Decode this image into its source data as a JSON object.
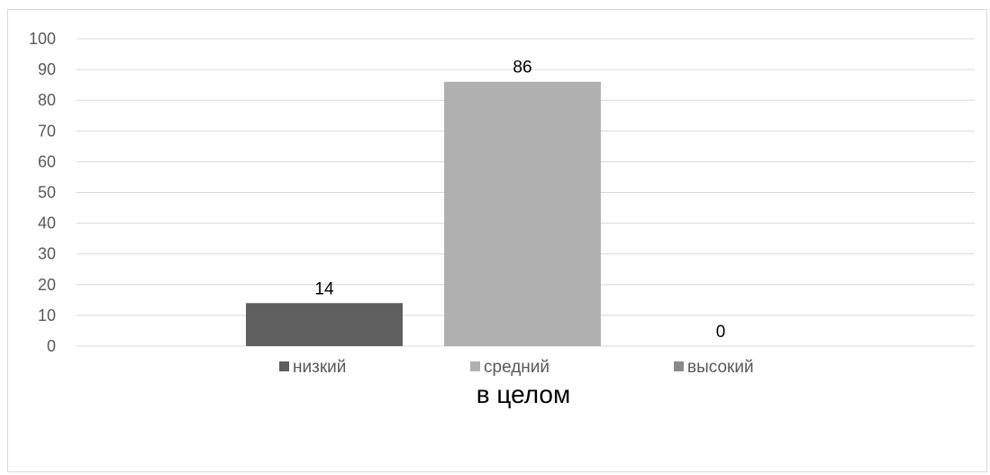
{
  "chart_data": {
    "type": "bar",
    "categories": [
      "в целом"
    ],
    "series": [
      {
        "name": "низкий",
        "values": [
          14
        ],
        "color": "#5f5f5f"
      },
      {
        "name": "средний",
        "values": [
          86
        ],
        "color": "#b0b0b0"
      },
      {
        "name": "высокий",
        "values": [
          0
        ],
        "color": "#8a8a8a"
      }
    ],
    "ylim": [
      0,
      100
    ],
    "yticks": [
      0,
      10,
      20,
      30,
      40,
      50,
      60,
      70,
      80,
      90,
      100
    ],
    "grid": true,
    "legend_position": "bottom",
    "data_labels": true
  }
}
